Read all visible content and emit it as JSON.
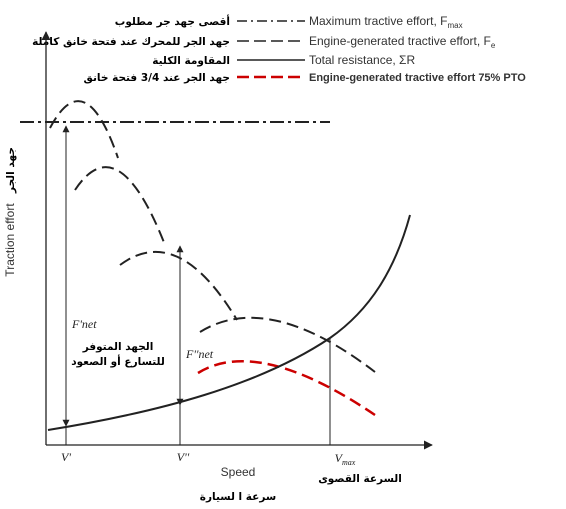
{
  "legend": [
    {
      "arabic": "أقصى جهد جر مطلوب",
      "english": "Maximum tractive effort, F",
      "subscript": "max"
    },
    {
      "arabic": "جهد الجر للمحرك عند فتحة خانق كاملة",
      "english": "Engine-generated tractive effort, F",
      "subscript": "e"
    },
    {
      "arabic": "المقاومة الكلية",
      "english": "Total resistance, ΣR"
    },
    {
      "arabic": "جهد الجر عند 3/4 فتحة خانق",
      "english": "Engine-generated tractive effort 75% PTO"
    }
  ],
  "axes": {
    "y_label": "Traction effort",
    "y_label_ar": "جهد الجر",
    "x_label": "Speed",
    "x_label_ar": "سرعة ا لسيارة"
  },
  "labels": {
    "f_net_1": "F'net",
    "f_net_2": "F''net",
    "available_effort": [
      "الجهد المتوفر",
      "للتسارع أو الصعود"
    ],
    "v1": "V'",
    "v2": "V''",
    "vmax": "V",
    "vmax_sub": "max",
    "max_speed_ar": "السرعة القصوى"
  }
}
